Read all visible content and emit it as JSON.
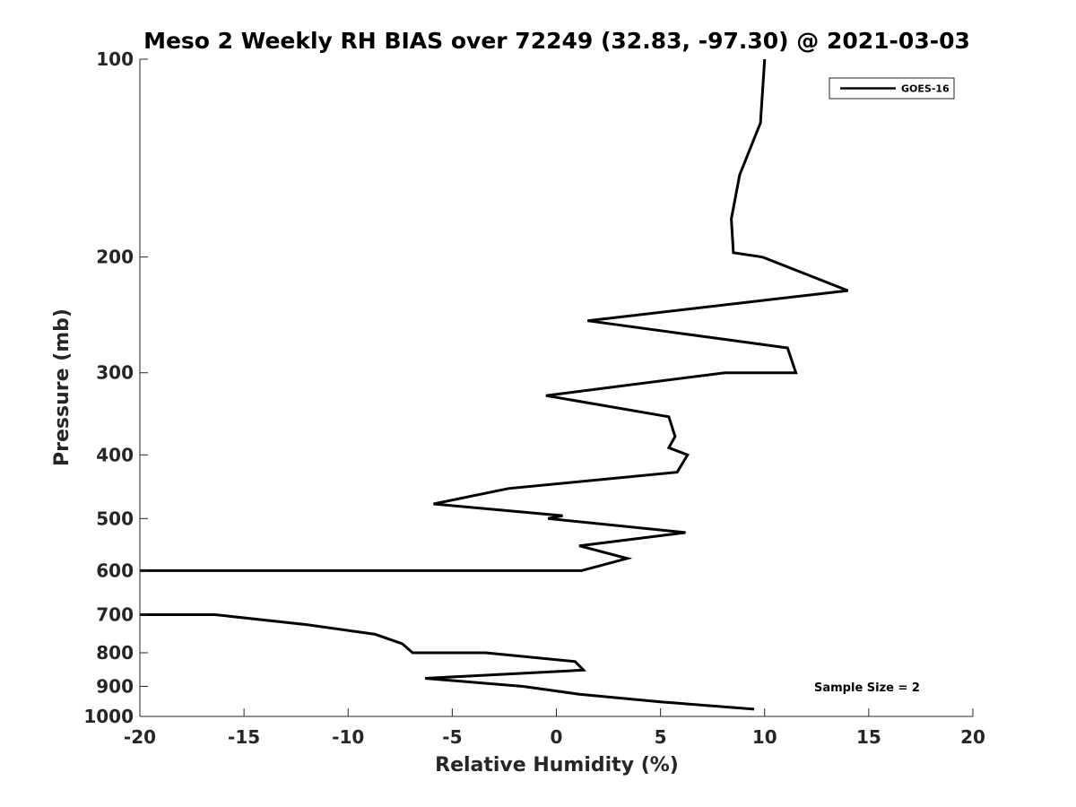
{
  "chart_data": {
    "type": "line",
    "title": "Meso 2 Weekly RH BIAS over 72249 (32.83, -97.30) @ 2021-03-03",
    "xlabel": "Relative Humidity (%)",
    "ylabel": "Pressure (mb)",
    "xlim": [
      -20,
      20
    ],
    "ylim": [
      1000,
      100
    ],
    "y_scale": "log",
    "xticks": [
      -20,
      -15,
      -10,
      -5,
      0,
      5,
      10,
      15,
      20
    ],
    "xtick_labels": [
      "-20",
      "-15",
      "-10",
      "-5",
      "0",
      "5",
      "10",
      "15",
      "20"
    ],
    "yticks": [
      100,
      200,
      300,
      400,
      500,
      600,
      700,
      800,
      900,
      1000
    ],
    "ytick_labels": [
      "100",
      "200",
      "300",
      "400",
      "500",
      "600",
      "700",
      "800",
      "900",
      "1000"
    ],
    "grid": false,
    "legend_position": "top-right",
    "series": [
      {
        "name": "GOES-16",
        "color": "#000000",
        "points": [
          {
            "x": 10.0,
            "p": 100
          },
          {
            "x": 9.8,
            "p": 125
          },
          {
            "x": 8.8,
            "p": 150
          },
          {
            "x": 8.4,
            "p": 175
          },
          {
            "x": 8.5,
            "p": 197
          },
          {
            "x": 9.9,
            "p": 200
          },
          {
            "x": 14.0,
            "p": 225
          },
          {
            "x": 1.5,
            "p": 250
          },
          {
            "x": 11.1,
            "p": 275
          },
          {
            "x": 11.5,
            "p": 300
          },
          {
            "x": 8.1,
            "p": 300
          },
          {
            "x": -0.5,
            "p": 325
          },
          {
            "x": 5.4,
            "p": 350
          },
          {
            "x": 5.7,
            "p": 375
          },
          {
            "x": 5.4,
            "p": 390
          },
          {
            "x": 6.3,
            "p": 400
          },
          {
            "x": 5.8,
            "p": 425
          },
          {
            "x": -2.3,
            "p": 450
          },
          {
            "x": -5.9,
            "p": 475
          },
          {
            "x": 0.3,
            "p": 495
          },
          {
            "x": -0.4,
            "p": 500
          },
          {
            "x": 6.2,
            "p": 525
          },
          {
            "x": 1.1,
            "p": 550
          },
          {
            "x": 3.4,
            "p": 575
          },
          {
            "x": 1.2,
            "p": 600
          },
          {
            "x": -20.0,
            "p": 600
          },
          {
            "x": null,
            "p": null
          },
          {
            "x": -20.0,
            "p": 700
          },
          {
            "x": -16.4,
            "p": 700
          },
          {
            "x": -12.0,
            "p": 725
          },
          {
            "x": -8.7,
            "p": 750
          },
          {
            "x": -7.4,
            "p": 775
          },
          {
            "x": -6.9,
            "p": 800
          },
          {
            "x": -3.4,
            "p": 800
          },
          {
            "x": 0.9,
            "p": 825
          },
          {
            "x": 1.3,
            "p": 850
          },
          {
            "x": -6.3,
            "p": 875
          },
          {
            "x": -1.6,
            "p": 900
          },
          {
            "x": 1.1,
            "p": 925
          },
          {
            "x": 5.0,
            "p": 950
          },
          {
            "x": 9.5,
            "p": 975
          }
        ]
      }
    ],
    "annotation": "Sample Size = 2"
  }
}
